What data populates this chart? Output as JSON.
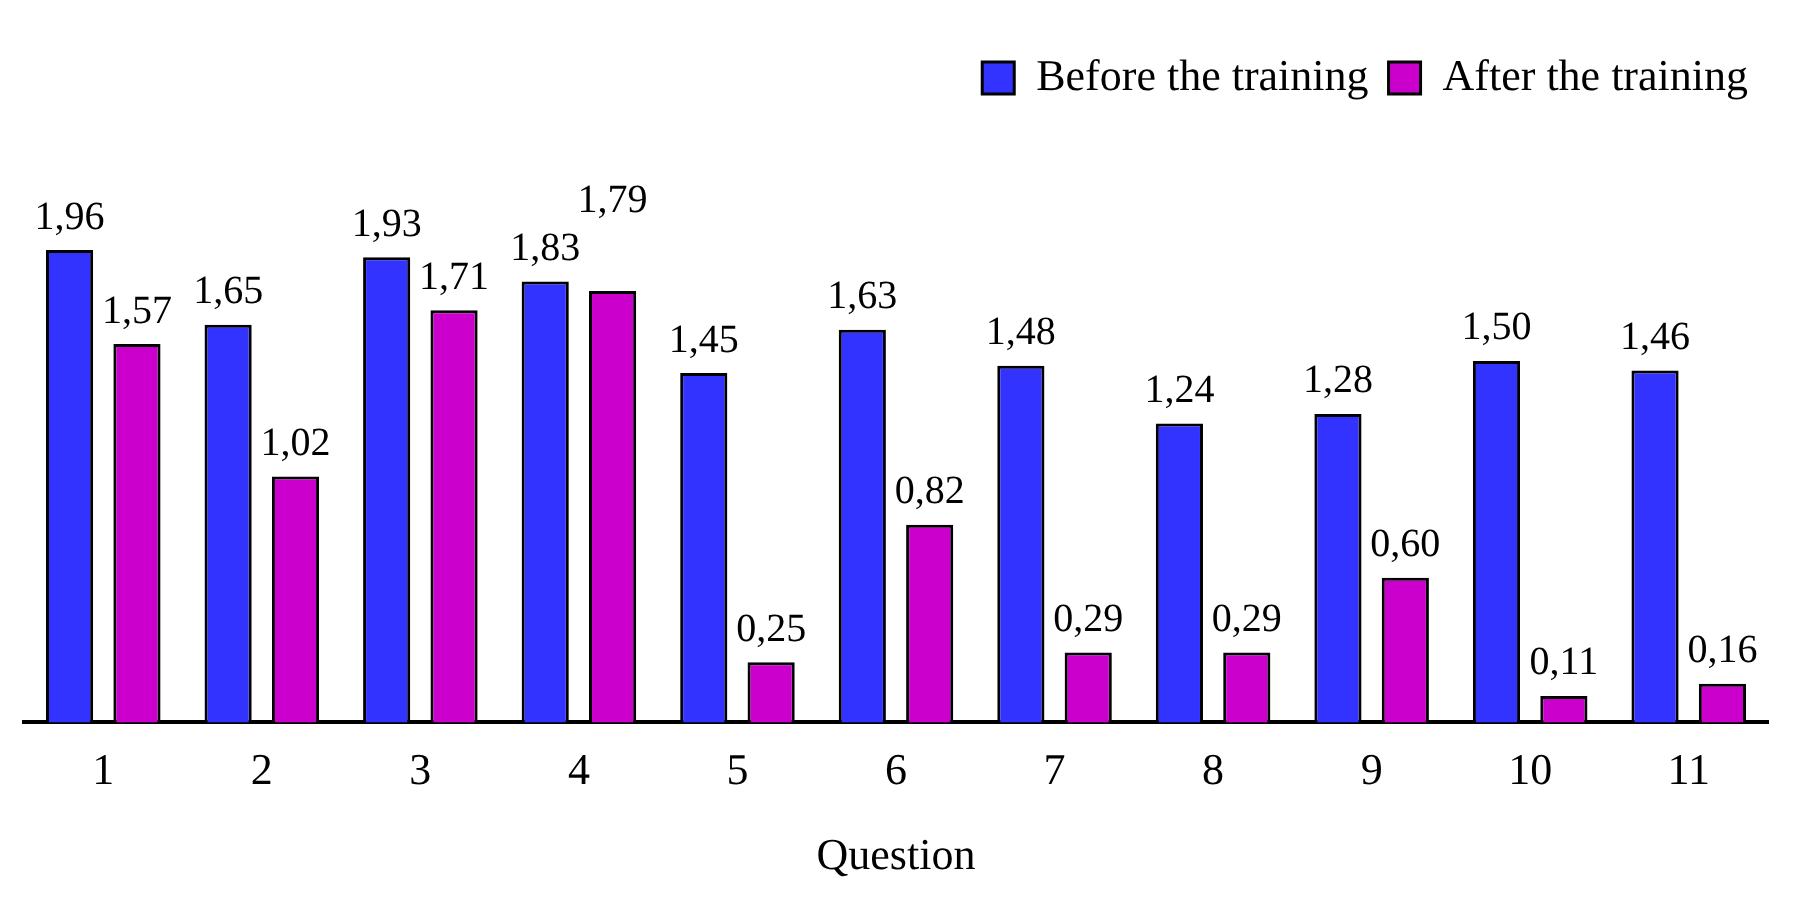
{
  "chart_data": {
    "type": "bar",
    "xlabel": "Question",
    "categories": [
      "1",
      "2",
      "3",
      "4",
      "5",
      "6",
      "7",
      "8",
      "9",
      "10",
      "11"
    ],
    "series": [
      {
        "name": "Before the training",
        "color": "#3333ff",
        "values": [
          1.96,
          1.65,
          1.93,
          1.83,
          1.45,
          1.63,
          1.48,
          1.24,
          1.28,
          1.5,
          1.46
        ],
        "value_labels": [
          "1,96",
          "1,65",
          "1,93",
          "1,83",
          "1,45",
          "1,63",
          "1,48",
          "1,24",
          "1,28",
          "1,50",
          "1,46"
        ]
      },
      {
        "name": "After the training",
        "color": "#cc00cc",
        "values": [
          1.57,
          1.02,
          1.71,
          1.79,
          0.25,
          0.82,
          0.29,
          0.29,
          0.6,
          0.11,
          0.16
        ],
        "value_labels": [
          "1,57",
          "1,02",
          "1,71",
          "1,79",
          "0,25",
          "0,82",
          "0,29",
          "0,29",
          "0,60",
          "0,11",
          "0,16"
        ]
      }
    ],
    "legend": "top right",
    "grid": false
  }
}
